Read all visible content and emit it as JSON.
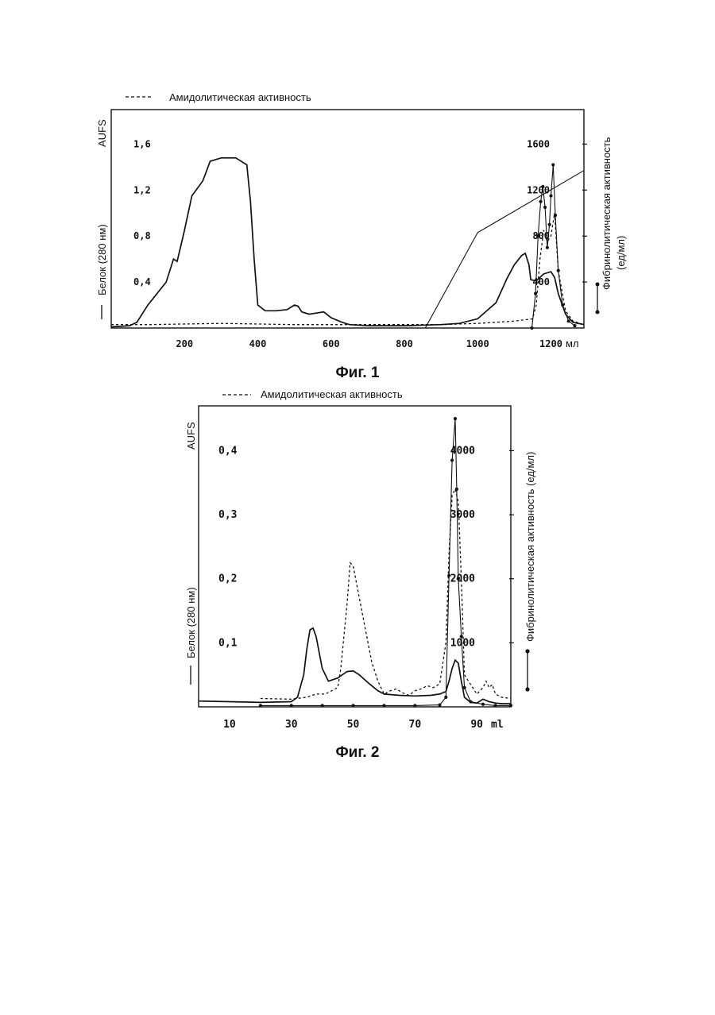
{
  "chart_data": [
    {
      "type": "line",
      "caption": "Фиг. 1",
      "legend_label": "Амидолитическая активность",
      "left_axis": {
        "label": "Белок (280 нм)",
        "unit_label": "AUFS",
        "ticks": [
          "1,6",
          "1,2",
          "0,8",
          "0,4"
        ],
        "tick_values": [
          1.6,
          1.2,
          0.8,
          0.4
        ],
        "ylim": [
          0,
          1.9
        ]
      },
      "right_axis": {
        "label": "Фибринолитическая активность",
        "unit_label": "(ед/мл)",
        "ticks": [
          "1600",
          "1200",
          "800",
          "400"
        ],
        "tick_values": [
          1600,
          1200,
          800,
          400
        ],
        "ylim": [
          0,
          1900
        ]
      },
      "x_axis": {
        "ticks": [
          "200",
          "400",
          "600",
          "800",
          "1000",
          "1200"
        ],
        "tick_values": [
          200,
          400,
          600,
          800,
          1000,
          1200
        ],
        "unit_label": "мл",
        "xlim": [
          0,
          1290
        ]
      },
      "series": [
        {
          "kind": "protein",
          "style": "solid",
          "axis": "left",
          "x": [
            0,
            50,
            70,
            100,
            150,
            170,
            180,
            200,
            220,
            250,
            270,
            300,
            340,
            370,
            380,
            390,
            400,
            420,
            450,
            480,
            500,
            510,
            520,
            540,
            560,
            580,
            600,
            630,
            650,
            700,
            800,
            900,
            950,
            1000,
            1050,
            1080,
            1100,
            1120,
            1130,
            1140,
            1145,
            1160,
            1180,
            1190,
            1200,
            1210,
            1220,
            1240,
            1260,
            1290
          ],
          "y": [
            0.01,
            0.02,
            0.05,
            0.2,
            0.4,
            0.6,
            0.58,
            0.85,
            1.15,
            1.28,
            1.45,
            1.48,
            1.48,
            1.42,
            1.1,
            0.6,
            0.2,
            0.15,
            0.15,
            0.16,
            0.2,
            0.19,
            0.14,
            0.12,
            0.13,
            0.14,
            0.09,
            0.05,
            0.03,
            0.02,
            0.02,
            0.03,
            0.04,
            0.08,
            0.22,
            0.43,
            0.55,
            0.63,
            0.65,
            0.55,
            0.42,
            0.41,
            0.47,
            0.48,
            0.49,
            0.44,
            0.3,
            0.12,
            0.05,
            0.03
          ]
        },
        {
          "kind": "amidolytic",
          "style": "dashed",
          "axis": "left",
          "x": [
            0,
            100,
            300,
            500,
            700,
            900,
            1000,
            1050,
            1100,
            1150,
            1160,
            1170,
            1180,
            1185,
            1190,
            1200,
            1210,
            1220,
            1240,
            1260,
            1290
          ],
          "y": [
            0.03,
            0.03,
            0.04,
            0.03,
            0.03,
            0.03,
            0.04,
            0.05,
            0.06,
            0.08,
            0.2,
            0.6,
            0.85,
            0.8,
            0.75,
            0.8,
            1.0,
            0.5,
            0.15,
            0.06,
            0.03
          ]
        },
        {
          "kind": "fibrinolytic",
          "style": "solid-dots",
          "axis": "right",
          "x": [
            1148,
            1158,
            1165,
            1172,
            1178,
            1184,
            1190,
            1196,
            1200,
            1206,
            1212,
            1220,
            1232,
            1248,
            1265
          ],
          "y": [
            0,
            300,
            800,
            1100,
            1230,
            1050,
            700,
            900,
            1150,
            1420,
            980,
            500,
            200,
            60,
            20
          ]
        },
        {
          "kind": "gradient",
          "style": "thin",
          "axis": "right",
          "x": [
            857,
            1000,
            1290
          ],
          "y": [
            0,
            830,
            1370
          ]
        }
      ]
    },
    {
      "type": "line",
      "caption": "Фиг. 2",
      "legend_label": "Амидолитическая активность",
      "left_axis": {
        "label": "Белок (280 нм)",
        "unit_label": "AUFS",
        "ticks": [
          "0,4",
          "0,3",
          "0,2",
          "0,1"
        ],
        "tick_values": [
          0.4,
          0.3,
          0.2,
          0.1
        ],
        "ylim": [
          0,
          0.47
        ]
      },
      "right_axis": {
        "label": "Фибринолитическая активность (ед/мл)",
        "ticks": [
          "4000",
          "3000",
          "2000",
          "1000"
        ],
        "tick_values": [
          4000,
          3000,
          2000,
          1000
        ],
        "ylim": [
          0,
          4700
        ]
      },
      "x_axis": {
        "ticks": [
          "10",
          "30",
          "50",
          "70",
          "90"
        ],
        "tick_values": [
          10,
          30,
          50,
          70,
          90
        ],
        "unit_label": "ml",
        "xlim": [
          0,
          101
        ]
      },
      "series": [
        {
          "kind": "protein",
          "style": "solid",
          "axis": "left",
          "x": [
            0,
            20,
            30,
            32,
            34,
            35,
            36,
            37,
            38,
            40,
            42,
            45,
            48,
            50,
            52,
            55,
            58,
            60,
            65,
            70,
            75,
            78,
            80,
            81,
            82,
            83,
            84,
            85,
            86,
            88,
            90,
            92,
            94,
            96,
            98,
            101
          ],
          "y": [
            0.009,
            0.007,
            0.008,
            0.015,
            0.05,
            0.09,
            0.12,
            0.123,
            0.11,
            0.06,
            0.04,
            0.045,
            0.055,
            0.056,
            0.05,
            0.037,
            0.025,
            0.02,
            0.018,
            0.017,
            0.018,
            0.02,
            0.024,
            0.04,
            0.06,
            0.073,
            0.068,
            0.04,
            0.015,
            0.007,
            0.006,
            0.012,
            0.008,
            0.006,
            0.005,
            0.005
          ]
        },
        {
          "kind": "amidolytic",
          "style": "dashed",
          "axis": "left",
          "x": [
            20,
            30,
            35,
            38,
            41,
            43,
            45,
            46,
            48,
            49,
            50,
            52,
            54,
            56,
            58,
            60,
            62,
            64,
            66,
            68,
            70,
            72,
            74,
            76,
            78,
            80,
            81,
            82,
            83,
            84,
            85,
            86,
            88,
            90,
            92,
            93,
            94,
            95,
            96,
            98,
            101
          ],
          "y": [
            0.013,
            0.012,
            0.015,
            0.02,
            0.02,
            0.025,
            0.03,
            0.06,
            0.16,
            0.225,
            0.22,
            0.17,
            0.12,
            0.07,
            0.04,
            0.02,
            0.025,
            0.028,
            0.022,
            0.018,
            0.025,
            0.028,
            0.033,
            0.03,
            0.036,
            0.1,
            0.24,
            0.33,
            0.34,
            0.32,
            0.2,
            0.05,
            0.035,
            0.02,
            0.03,
            0.04,
            0.03,
            0.035,
            0.02,
            0.015,
            0.013
          ]
        },
        {
          "kind": "fibrinolytic",
          "style": "solid-dots",
          "axis": "right",
          "x": [
            20,
            30,
            40,
            50,
            60,
            70,
            78,
            80,
            81,
            82,
            83,
            83.5,
            84,
            85,
            86,
            88,
            92,
            96,
            101
          ],
          "y": [
            20,
            20,
            20,
            20,
            20,
            20,
            30,
            150,
            2050,
            3850,
            4500,
            3400,
            2000,
            1100,
            300,
            80,
            40,
            20,
            20
          ]
        }
      ]
    }
  ]
}
